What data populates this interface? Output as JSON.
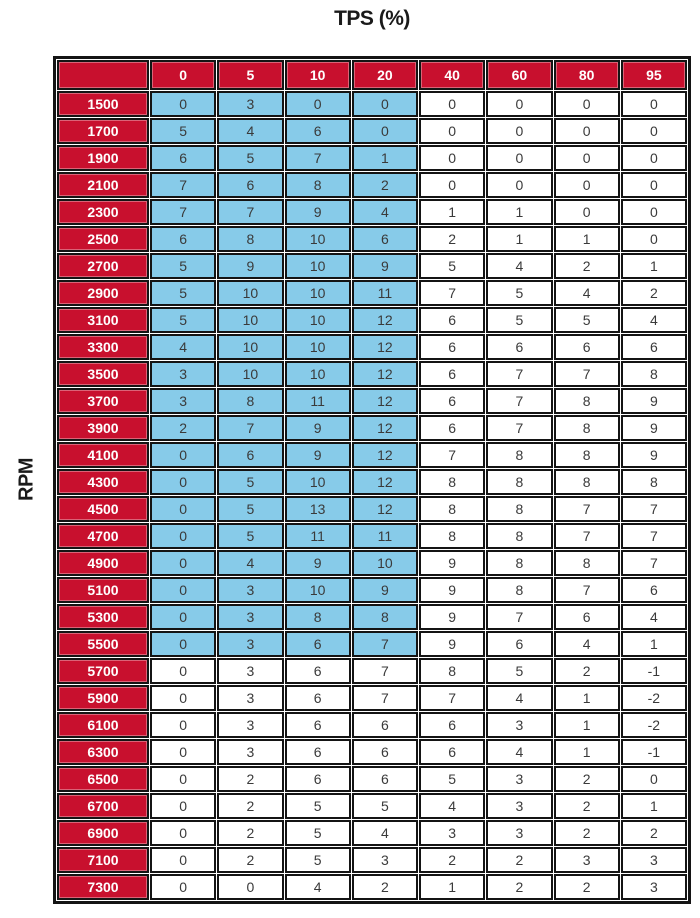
{
  "title": "TPS (%)",
  "row_axis_label": "RPM",
  "colors": {
    "header_bg": "#c8102e",
    "header_text": "#ffffff",
    "highlight_bg": "#87cbe9",
    "cell_text": "#3a3a3a",
    "grid": "#141414"
  },
  "chart_data": {
    "type": "table",
    "title": "TPS (%)",
    "xlabel": "TPS (%)",
    "ylabel": "RPM",
    "columns": [
      "0",
      "5",
      "10",
      "20",
      "40",
      "60",
      "80",
      "95"
    ],
    "rows": [
      {
        "rpm": "1500",
        "values": [
          0,
          3,
          0,
          0,
          0,
          0,
          0,
          0
        ]
      },
      {
        "rpm": "1700",
        "values": [
          5,
          4,
          6,
          0,
          0,
          0,
          0,
          0
        ]
      },
      {
        "rpm": "1900",
        "values": [
          6,
          5,
          7,
          1,
          0,
          0,
          0,
          0
        ]
      },
      {
        "rpm": "2100",
        "values": [
          7,
          6,
          8,
          2,
          0,
          0,
          0,
          0
        ]
      },
      {
        "rpm": "2300",
        "values": [
          7,
          7,
          9,
          4,
          1,
          1,
          0,
          0
        ]
      },
      {
        "rpm": "2500",
        "values": [
          6,
          8,
          10,
          6,
          2,
          1,
          1,
          0
        ]
      },
      {
        "rpm": "2700",
        "values": [
          5,
          9,
          10,
          9,
          5,
          4,
          2,
          1
        ]
      },
      {
        "rpm": "2900",
        "values": [
          5,
          10,
          10,
          11,
          7,
          5,
          4,
          2
        ]
      },
      {
        "rpm": "3100",
        "values": [
          5,
          10,
          10,
          12,
          6,
          5,
          5,
          4
        ]
      },
      {
        "rpm": "3300",
        "values": [
          4,
          10,
          10,
          12,
          6,
          6,
          6,
          6
        ]
      },
      {
        "rpm": "3500",
        "values": [
          3,
          10,
          10,
          12,
          6,
          7,
          7,
          8
        ]
      },
      {
        "rpm": "3700",
        "values": [
          3,
          8,
          11,
          12,
          6,
          7,
          8,
          9
        ]
      },
      {
        "rpm": "3900",
        "values": [
          2,
          7,
          9,
          12,
          6,
          7,
          8,
          9
        ]
      },
      {
        "rpm": "4100",
        "values": [
          0,
          6,
          9,
          12,
          7,
          8,
          8,
          9
        ]
      },
      {
        "rpm": "4300",
        "values": [
          0,
          5,
          10,
          12,
          8,
          8,
          8,
          8
        ]
      },
      {
        "rpm": "4500",
        "values": [
          0,
          5,
          13,
          12,
          8,
          8,
          7,
          7
        ]
      },
      {
        "rpm": "4700",
        "values": [
          0,
          5,
          11,
          11,
          8,
          8,
          7,
          7
        ]
      },
      {
        "rpm": "4900",
        "values": [
          0,
          4,
          9,
          10,
          9,
          8,
          8,
          7
        ]
      },
      {
        "rpm": "5100",
        "values": [
          0,
          3,
          10,
          9,
          9,
          8,
          7,
          6
        ]
      },
      {
        "rpm": "5300",
        "values": [
          0,
          3,
          8,
          8,
          9,
          7,
          6,
          4
        ]
      },
      {
        "rpm": "5500",
        "values": [
          0,
          3,
          6,
          7,
          9,
          6,
          4,
          1
        ]
      },
      {
        "rpm": "5700",
        "values": [
          0,
          3,
          6,
          7,
          8,
          5,
          2,
          -1
        ]
      },
      {
        "rpm": "5900",
        "values": [
          0,
          3,
          6,
          7,
          7,
          4,
          1,
          -2
        ]
      },
      {
        "rpm": "6100",
        "values": [
          0,
          3,
          6,
          6,
          6,
          3,
          1,
          -2
        ]
      },
      {
        "rpm": "6300",
        "values": [
          0,
          3,
          6,
          6,
          6,
          4,
          1,
          -1
        ]
      },
      {
        "rpm": "6500",
        "values": [
          0,
          2,
          6,
          6,
          5,
          3,
          2,
          0
        ]
      },
      {
        "rpm": "6700",
        "values": [
          0,
          2,
          5,
          5,
          4,
          3,
          2,
          1
        ]
      },
      {
        "rpm": "6900",
        "values": [
          0,
          2,
          5,
          4,
          3,
          3,
          2,
          2
        ]
      },
      {
        "rpm": "7100",
        "values": [
          0,
          2,
          5,
          3,
          2,
          2,
          3,
          3
        ]
      },
      {
        "rpm": "7300",
        "values": [
          0,
          0,
          4,
          2,
          1,
          2,
          2,
          3
        ]
      }
    ],
    "highlight": {
      "style": "light-blue cells",
      "rpm_range": "1500-5500",
      "tps_columns": [
        "0",
        "5",
        "10",
        "20"
      ],
      "row_count": 21,
      "col_count": 4
    }
  }
}
